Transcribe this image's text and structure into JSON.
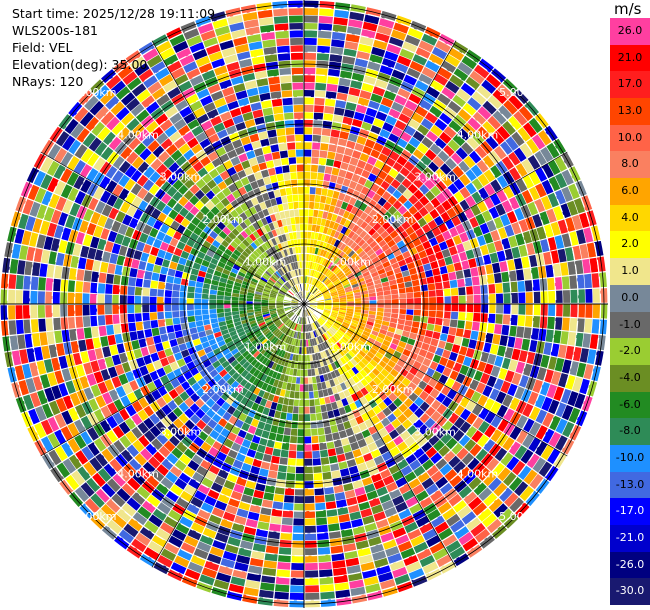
{
  "header": {
    "start_time": "Start time: 2025/12/28 19:11:09",
    "instrument": "WLS200s-181",
    "field": "Field: VEL",
    "elevation": "Elevation(deg): 35.00",
    "nrays": "NRays: 120"
  },
  "colorbar": {
    "unit": "m/s",
    "levels": [
      {
        "label": "26.0",
        "color": "#ff3fa0"
      },
      {
        "label": "21.0",
        "color": "#ff0000"
      },
      {
        "label": "17.0",
        "color": "#ff1e1e"
      },
      {
        "label": "13.0",
        "color": "#ff4500"
      },
      {
        "label": "10.0",
        "color": "#ff6347"
      },
      {
        "label": "8.0",
        "color": "#fa8060"
      },
      {
        "label": "6.0",
        "color": "#ffa500"
      },
      {
        "label": "4.0",
        "color": "#ffd700"
      },
      {
        "label": "2.0",
        "color": "#ffff00"
      },
      {
        "label": "1.0",
        "color": "#f0e68c"
      },
      {
        "label": "0.0",
        "color": "#778899"
      },
      {
        "label": "-1.0",
        "color": "#696969"
      },
      {
        "label": "-2.0",
        "color": "#9acd32"
      },
      {
        "label": "-4.0",
        "color": "#6b8e23"
      },
      {
        "label": "-6.0",
        "color": "#228b22"
      },
      {
        "label": "-8.0",
        "color": "#2e8b57"
      },
      {
        "label": "-10.0",
        "color": "#1e90ff"
      },
      {
        "label": "-13.0",
        "color": "#4169e1"
      },
      {
        "label": "-17.0",
        "color": "#0000ff"
      },
      {
        "label": "-21.0",
        "color": "#0000cd"
      },
      {
        "label": "-26.0",
        "color": "#000080"
      },
      {
        "label": "-30.0",
        "color": "#191970"
      }
    ]
  },
  "chart_data": {
    "type": "heatmap",
    "projection": "polar PPI",
    "field": "VEL",
    "unit": "m/s",
    "elevation_deg": 35.0,
    "n_rays": 120,
    "range_rings_km": [
      1.0,
      2.0,
      3.0,
      4.0,
      5.0
    ],
    "range_ring_labels": [
      "1.00km",
      "2.00km",
      "3.00km",
      "4.00km",
      "5.00km"
    ],
    "clim": [
      -30.0,
      26.0
    ],
    "pattern": "near-field radial velocity: negative (green/blue) toward west/northwest, positive (yellow/orange/red) toward east/southeast; beyond ~3 km noisy values spanning full scale"
  }
}
